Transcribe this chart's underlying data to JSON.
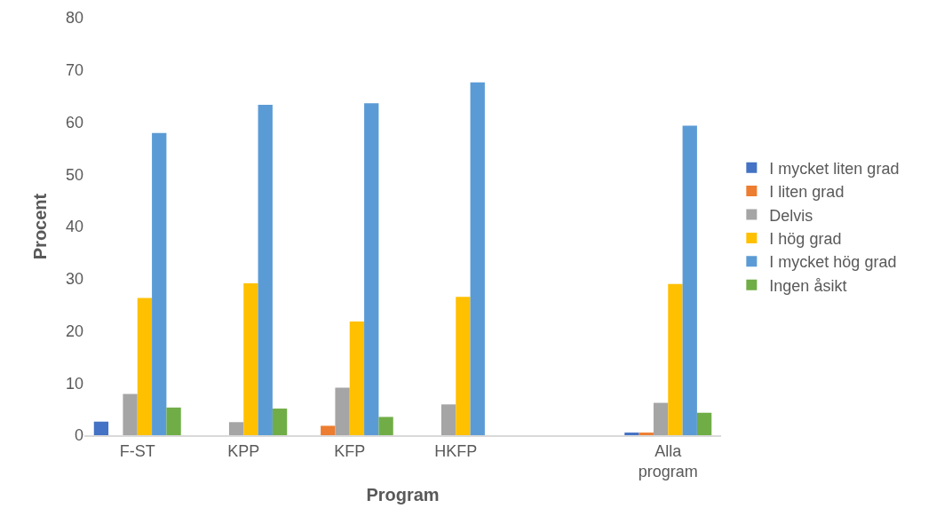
{
  "chart_data": {
    "type": "bar",
    "xlabel": "Program",
    "ylabel": "Procent",
    "categories": [
      "F-ST",
      "KPP",
      "KFP",
      "HKFP",
      null,
      "Alla program"
    ],
    "series": [
      {
        "name": "I mycket liten grad",
        "color": "#4472c4",
        "values": [
          2.6,
          0,
          0,
          0,
          null,
          0.5
        ]
      },
      {
        "name": "I liten grad",
        "color": "#ed7d31",
        "values": [
          0,
          0,
          1.8,
          0,
          null,
          0.5
        ]
      },
      {
        "name": "Delvis",
        "color": "#a5a5a5",
        "values": [
          7.9,
          2.5,
          9.1,
          5.9,
          null,
          6.2
        ]
      },
      {
        "name": "I hög grad",
        "color": "#ffc000",
        "values": [
          26.3,
          29.1,
          21.8,
          26.5,
          null,
          29.0
        ]
      },
      {
        "name": "I mycket hög grad",
        "color": "#5b9bd5",
        "values": [
          57.9,
          63.3,
          63.6,
          67.6,
          null,
          59.3
        ]
      },
      {
        "name": "Ingen åsikt",
        "color": "#70ad47",
        "values": [
          5.3,
          5.1,
          3.5,
          0,
          null,
          4.3
        ]
      }
    ],
    "ylim": [
      0,
      80
    ],
    "yticks": [
      0,
      10,
      20,
      30,
      40,
      50,
      60,
      70,
      80
    ],
    "grid": false,
    "legend": "right"
  }
}
